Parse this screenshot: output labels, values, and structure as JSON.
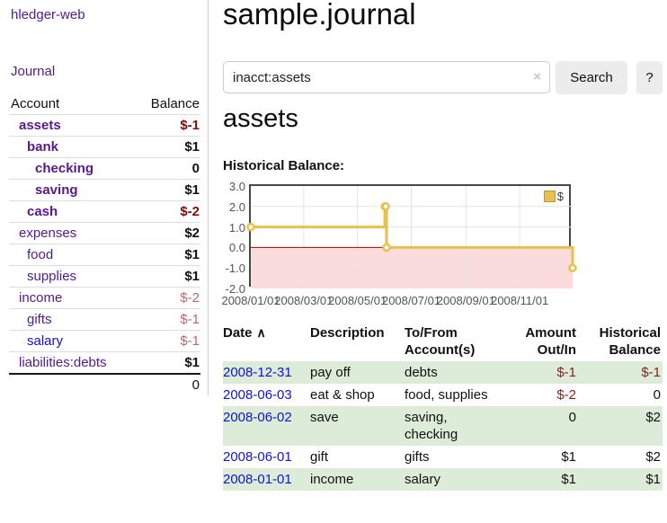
{
  "sidebar": {
    "app_title": "hledger-web",
    "journal_link": "Journal",
    "accounts_header": {
      "account": "Account",
      "balance": "Balance"
    },
    "accounts": [
      {
        "name": "assets",
        "depth": 1,
        "balance": "$-1",
        "bold": true,
        "balance_style": "neg-strong",
        "link_style": "purple"
      },
      {
        "name": "bank",
        "depth": 2,
        "balance": "$1",
        "bold": true,
        "balance_style": "",
        "link_style": "purple"
      },
      {
        "name": "checking",
        "depth": 3,
        "balance": "0",
        "bold": true,
        "balance_style": "",
        "link_style": "purple"
      },
      {
        "name": "saving",
        "depth": 3,
        "balance": "$1",
        "bold": true,
        "balance_style": "",
        "link_style": "purple"
      },
      {
        "name": "cash",
        "depth": 2,
        "balance": "$-2",
        "bold": true,
        "balance_style": "neg-strong",
        "link_style": "purple"
      },
      {
        "name": "expenses",
        "depth": 1,
        "balance": "$2",
        "bold": false,
        "balance_style": "",
        "link_style": "purple"
      },
      {
        "name": "food",
        "depth": 2,
        "balance": "$1",
        "bold": false,
        "balance_style": "",
        "link_style": "purple"
      },
      {
        "name": "supplies",
        "depth": 2,
        "balance": "$1",
        "bold": false,
        "balance_style": "",
        "link_style": "purple"
      },
      {
        "name": "income",
        "depth": 1,
        "balance": "$-2",
        "bold": false,
        "balance_style": "neg-faded",
        "link_style": "purple"
      },
      {
        "name": "gifts",
        "depth": 2,
        "balance": "$-1",
        "bold": false,
        "balance_style": "neg-faded",
        "link_style": "purple"
      },
      {
        "name": "salary",
        "depth": 2,
        "balance": "$-1",
        "bold": false,
        "balance_style": "neg-faded",
        "link_style": "blue"
      },
      {
        "name": "liabilities:debts",
        "depth": 1,
        "balance": "$1",
        "bold": false,
        "balance_style": "",
        "link_style": "purple"
      }
    ],
    "total": "0"
  },
  "header": {
    "title": "sample.journal"
  },
  "search": {
    "value": "inacct:assets",
    "clear_icon": "×",
    "search_label": "Search",
    "help_label": "?"
  },
  "main": {
    "account_heading": "assets"
  },
  "chart_data": {
    "type": "line",
    "title": "Historical Balance:",
    "step": true,
    "xrange": [
      "2008-01-01",
      "2008-12-31"
    ],
    "ylim": [
      -2,
      3
    ],
    "y_ticks": [
      "3.0",
      "2.0",
      "1.0",
      "0.0",
      "-1.0",
      "-2.0"
    ],
    "x_ticks": [
      "2008/01/01",
      "2008/03/01",
      "2008/05/01",
      "2008/07/01",
      "2008/09/01",
      "2008/11/01"
    ],
    "series": [
      {
        "name": "$",
        "color": "#e9c04a",
        "points": [
          [
            "2008-01-01",
            1
          ],
          [
            "2008-06-01",
            2
          ],
          [
            "2008-06-02",
            2
          ],
          [
            "2008-06-03",
            0
          ],
          [
            "2008-12-31",
            -1
          ]
        ]
      }
    ],
    "legend": {
      "label": "$",
      "position": "top-right"
    },
    "negative_region_color": "#fbdbdb",
    "zero_line_color": "#a40000",
    "grid_color": "#e3e3e3"
  },
  "register": {
    "headers": {
      "date": "Date",
      "description": "Description",
      "accounts": "To/From Account(s)",
      "amount": "Amount Out/In",
      "balance": "Historical Balance"
    },
    "sort_icon": "∧",
    "rows": [
      {
        "date": "2008-12-31",
        "description": "pay off",
        "accounts": "debts",
        "amount": "$-1",
        "amount_neg": true,
        "balance": "$-1",
        "balance_neg": true
      },
      {
        "date": "2008-06-03",
        "description": "eat & shop",
        "accounts": "food, supplies",
        "amount": "$-2",
        "amount_neg": true,
        "balance": "0",
        "balance_neg": false
      },
      {
        "date": "2008-06-02",
        "description": "save",
        "accounts": "saving, checking",
        "amount": "0",
        "amount_neg": false,
        "balance": "$2",
        "balance_neg": false
      },
      {
        "date": "2008-06-01",
        "description": "gift",
        "accounts": "gifts",
        "amount": "$1",
        "amount_neg": false,
        "balance": "$2",
        "balance_neg": false
      },
      {
        "date": "2008-01-01",
        "description": "income",
        "accounts": "salary",
        "amount": "$1",
        "amount_neg": false,
        "balance": "$1",
        "balance_neg": false
      }
    ]
  }
}
